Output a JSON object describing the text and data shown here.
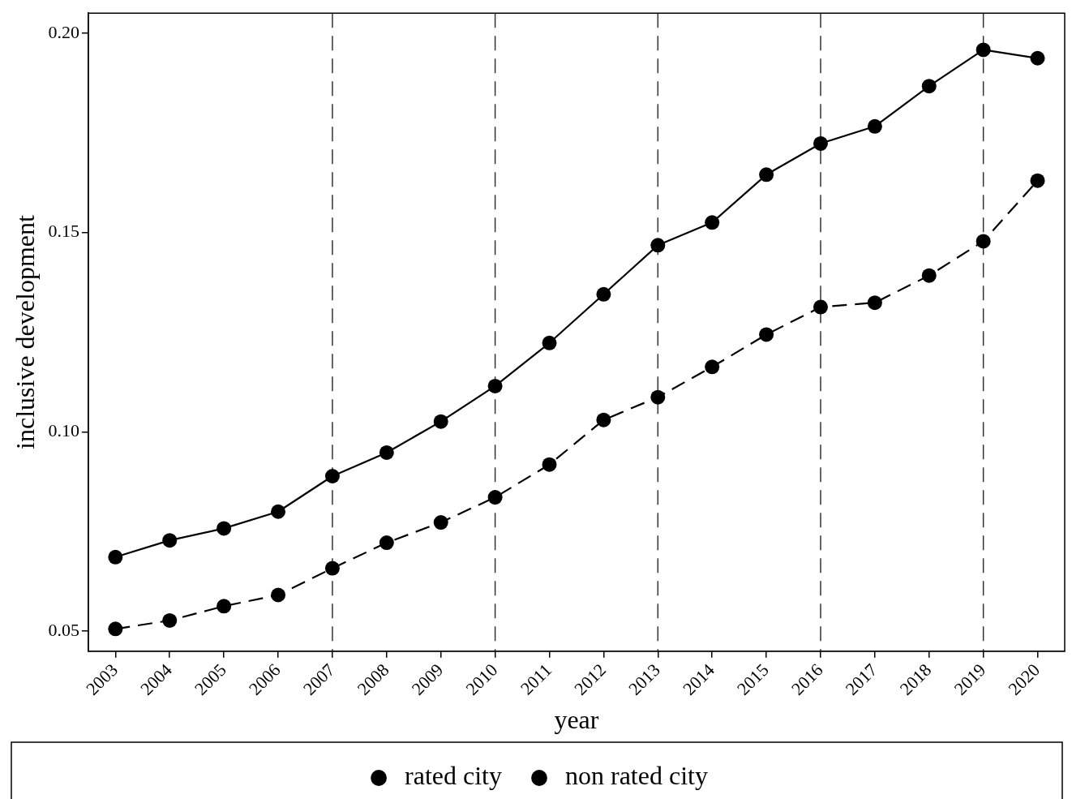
{
  "chart_data": {
    "type": "line",
    "xlabel": "year",
    "ylabel": "inclusive development",
    "categories": [
      "2003",
      "2004",
      "2005",
      "2006",
      "2007",
      "2008",
      "2009",
      "2010",
      "2011",
      "2012",
      "2013",
      "2014",
      "2015",
      "2016",
      "2017",
      "2018",
      "2019",
      "2020"
    ],
    "series": [
      {
        "name": "rated city",
        "color": "#000000",
        "line_style": "solid",
        "values": [
          0.0686,
          0.0728,
          0.0758,
          0.08,
          0.0889,
          0.0948,
          0.1026,
          0.1115,
          0.1223,
          0.1345,
          0.1468,
          0.1525,
          0.1645,
          0.1723,
          0.1766,
          0.1867,
          0.1958,
          0.1937
        ]
      },
      {
        "name": "non rated city",
        "color": "#000000",
        "line_style": "dashed",
        "values": [
          0.0506,
          0.0527,
          0.0563,
          0.0591,
          0.0658,
          0.0722,
          0.0773,
          0.0836,
          0.0918,
          0.103,
          0.1087,
          0.1163,
          0.1244,
          0.1313,
          0.1324,
          0.1392,
          0.1478,
          0.163
        ]
      }
    ],
    "ylim": [
      0.045,
      0.205
    ],
    "yticks": [
      {
        "value": 0.05,
        "label": "0.05"
      },
      {
        "value": 0.1,
        "label": "0.10"
      },
      {
        "value": 0.15,
        "label": "0.15"
      },
      {
        "value": 0.2,
        "label": "0.20"
      }
    ],
    "ref_lines": [
      {
        "axis": "x",
        "value": "2007",
        "line_style": "dashed",
        "color": "#333333"
      },
      {
        "axis": "x",
        "value": "2010",
        "line_style": "dashed",
        "color": "#333333"
      },
      {
        "axis": "x",
        "value": "2013",
        "line_style": "dashed",
        "color": "#333333"
      },
      {
        "axis": "x",
        "value": "2016",
        "line_style": "dashed",
        "color": "#333333"
      },
      {
        "axis": "x",
        "value": "2019",
        "line_style": "dashed",
        "color": "#333333"
      }
    ],
    "marker": "circle",
    "grid": false,
    "legend": "bottom"
  }
}
